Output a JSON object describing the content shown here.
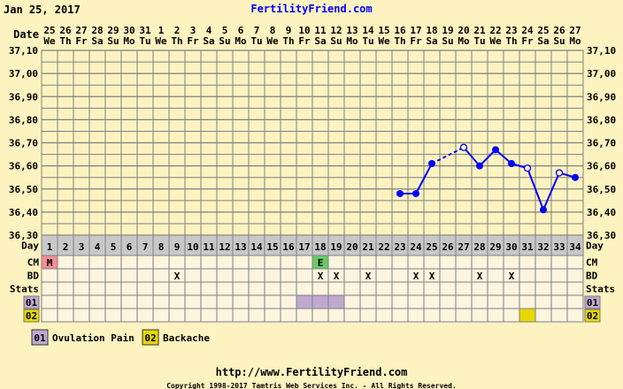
{
  "header": {
    "date": "Jan 25, 2017",
    "site": "FertilityFriend.com"
  },
  "labels": {
    "date": "Date",
    "day": "Day",
    "cm": "CM",
    "bd": "BD",
    "stats": "Stats"
  },
  "dates": [
    [
      "25",
      "We"
    ],
    [
      "26",
      "Th"
    ],
    [
      "27",
      "Fr"
    ],
    [
      "28",
      "Sa"
    ],
    [
      "29",
      "Su"
    ],
    [
      "30",
      "Mo"
    ],
    [
      "31",
      "Tu"
    ],
    [
      "1",
      "We"
    ],
    [
      "2",
      "Th"
    ],
    [
      "3",
      "Fr"
    ],
    [
      "4",
      "Sa"
    ],
    [
      "5",
      "Su"
    ],
    [
      "6",
      "Mo"
    ],
    [
      "7",
      "Tu"
    ],
    [
      "8",
      "We"
    ],
    [
      "9",
      "Th"
    ],
    [
      "10",
      "Fr"
    ],
    [
      "11",
      "Sa"
    ],
    [
      "12",
      "Su"
    ],
    [
      "13",
      "Mo"
    ],
    [
      "14",
      "Tu"
    ],
    [
      "15",
      "We"
    ],
    [
      "16",
      "Th"
    ],
    [
      "17",
      "Fr"
    ],
    [
      "18",
      "Sa"
    ],
    [
      "19",
      "Su"
    ],
    [
      "20",
      "Mo"
    ],
    [
      "21",
      "Tu"
    ],
    [
      "22",
      "We"
    ],
    [
      "23",
      "Th"
    ],
    [
      "24",
      "Fr"
    ],
    [
      "25",
      "Sa"
    ],
    [
      "26",
      "Su"
    ],
    [
      "27",
      "Mo"
    ]
  ],
  "chart_data": {
    "type": "line",
    "ylim": [
      36.3,
      37.1
    ],
    "yticks": [
      "37,10",
      "37,00",
      "36,90",
      "36,80",
      "36,70",
      "36,60",
      "36,50",
      "36,40",
      "36,30"
    ],
    "days": 34,
    "temps": [
      {
        "day": 23,
        "value": 36.48,
        "open": false
      },
      {
        "day": 24,
        "value": 36.48,
        "open": false
      },
      {
        "day": 25,
        "value": 36.61,
        "open": false
      },
      {
        "day": 27,
        "value": 36.68,
        "open": true
      },
      {
        "day": 28,
        "value": 36.6,
        "open": false
      },
      {
        "day": 29,
        "value": 36.67,
        "open": false
      },
      {
        "day": 30,
        "value": 36.61,
        "open": false
      },
      {
        "day": 31,
        "value": 36.59,
        "open": true
      },
      {
        "day": 32,
        "value": 36.41,
        "open": false
      },
      {
        "day": 33,
        "value": 36.57,
        "open": true
      },
      {
        "day": 34,
        "value": 36.55,
        "open": false
      }
    ],
    "line_color": "#0000ff"
  },
  "cm": [
    {
      "day": 1,
      "text": "M",
      "color": "#f78a9a"
    },
    {
      "day": 18,
      "text": "E",
      "color": "#66cc66"
    }
  ],
  "bd": {
    "text": "X",
    "days": [
      9,
      18,
      19,
      21,
      24,
      25,
      28,
      30
    ]
  },
  "stats": [
    {
      "code": "01",
      "label": "Ovulation Pain",
      "color": "#c0a8d0",
      "days": [
        17,
        18,
        19
      ]
    },
    {
      "code": "02",
      "label": "Backache",
      "color": "#e6d800",
      "days": [
        31
      ]
    }
  ],
  "footer": {
    "url": "http://www.FertilityFriend.com",
    "copyright": "Copyright 1998-2017 Tamtris Web Services Inc. - All Rights Reserved."
  }
}
